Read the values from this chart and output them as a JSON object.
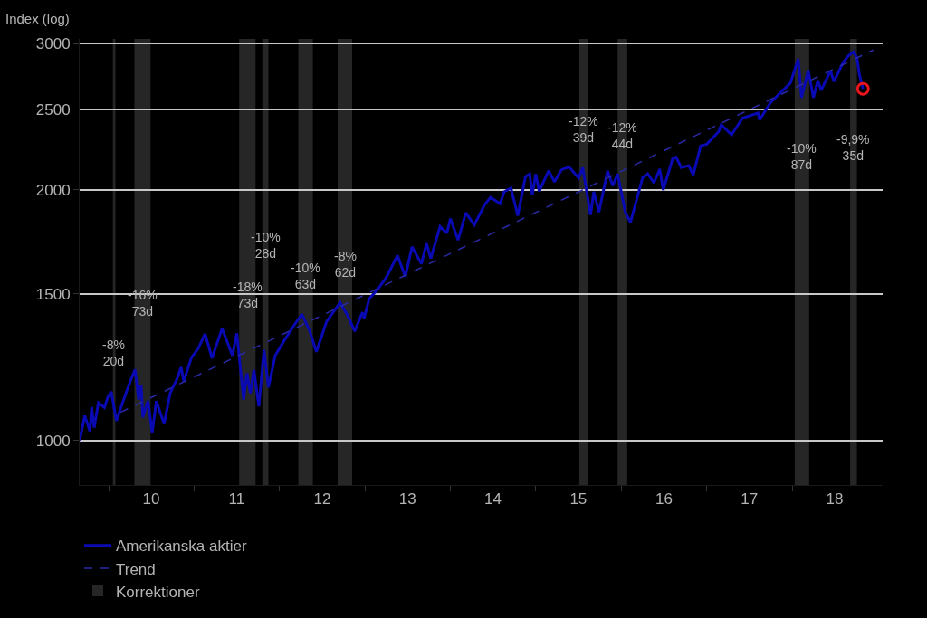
{
  "chart_data": {
    "type": "line",
    "ylabel": "Index (log)",
    "log": true,
    "grid": "y",
    "legend": "bottom",
    "xlim": [
      "2009-08-30",
      "2019-01-23"
    ],
    "ylim": [
      884,
      3038
    ],
    "yticks": [
      1000,
      1500,
      2000,
      2500,
      3000
    ],
    "xticks": [
      {
        "value": "2010-01-01",
        "label": null
      },
      {
        "value": "2010-07-02",
        "label": "10"
      },
      {
        "value": "2011-01-01",
        "label": null
      },
      {
        "value": "2011-07-02",
        "label": "11"
      },
      {
        "value": "2012-01-01",
        "label": null
      },
      {
        "value": "2012-07-02",
        "label": "12"
      },
      {
        "value": "2013-01-01",
        "label": null
      },
      {
        "value": "2013-07-02",
        "label": "13"
      },
      {
        "value": "2014-01-01",
        "label": null
      },
      {
        "value": "2014-07-02",
        "label": "14"
      },
      {
        "value": "2015-01-01",
        "label": null
      },
      {
        "value": "2015-07-02",
        "label": "15"
      },
      {
        "value": "2016-01-01",
        "label": null
      },
      {
        "value": "2016-07-02",
        "label": "16"
      },
      {
        "value": "2017-01-01",
        "label": null
      },
      {
        "value": "2017-07-02",
        "label": "17"
      },
      {
        "value": "2018-01-01",
        "label": null
      },
      {
        "value": "2018-07-02",
        "label": "18"
      }
    ],
    "series": [
      {
        "name": "Amerikanska aktier",
        "color": "#0a0ab4",
        "line_style": "solid",
        "marker": "none",
        "x": [
          "2009-08-30",
          "2009-09-21",
          "2009-10-13",
          "2009-10-20",
          "2009-10-31",
          "2009-11-18",
          "2009-12-14",
          "2009-12-28",
          "2010-01-12",
          "2010-02-03",
          "2010-03-04",
          "2010-04-02",
          "2010-04-24",
          "2010-05-09",
          "2010-05-20",
          "2010-05-27",
          "2010-06-18",
          "2010-07-06",
          "2010-07-24",
          "2010-08-26",
          "2010-09-21",
          "2010-10-20",
          "2010-11-07",
          "2010-11-18",
          "2010-12-21",
          "2011-01-19",
          "2011-02-17",
          "2011-03-19",
          "2011-05-01",
          "2011-06-14",
          "2011-07-03",
          "2011-08-01",
          "2011-08-15",
          "2011-08-30",
          "2011-09-14",
          "2011-10-05",
          "2011-10-27",
          "2011-11-15",
          "2011-12-14",
          "2012-01-19",
          "2012-02-25",
          "2012-04-06",
          "2012-05-09",
          "2012-06-07",
          "2012-07-21",
          "2012-09-17",
          "2012-10-20",
          "2012-11-18",
          "2012-12-21",
          "2012-12-28",
          "2013-01-19",
          "2013-02-25",
          "2013-04-02",
          "2013-05-20",
          "2013-06-22",
          "2013-07-21",
          "2013-08-30",
          "2013-09-21",
          "2013-10-09",
          "2013-11-18",
          "2013-12-17",
          "2014-01-01",
          "2014-02-03",
          "2014-03-08",
          "2014-04-13",
          "2014-05-27",
          "2014-06-22",
          "2014-08-01",
          "2014-08-19",
          "2014-09-17",
          "2014-10-16",
          "2014-11-18",
          "2014-12-06",
          "2014-12-17",
          "2015-01-01",
          "2015-01-16",
          "2015-02-25",
          "2015-03-22",
          "2015-04-21",
          "2015-05-23",
          "2015-07-03",
          "2015-07-21",
          "2015-08-23",
          "2015-09-06",
          "2015-09-28",
          "2015-11-04",
          "2015-11-26",
          "2015-12-17",
          "2016-01-19",
          "2016-02-10",
          "2016-04-02",
          "2016-04-24",
          "2016-05-20",
          "2016-06-14",
          "2016-06-29",
          "2016-08-08",
          "2016-08-23",
          "2016-09-14",
          "2016-10-16",
          "2016-11-04",
          "2016-12-06",
          "2017-01-01",
          "2017-02-21",
          "2017-03-04",
          "2017-04-17",
          "2017-06-03",
          "2017-08-08",
          "2017-08-15",
          "2017-10-02",
          "2017-11-26",
          "2017-12-25",
          "2018-01-27",
          "2018-02-10",
          "2018-03-11",
          "2018-04-02",
          "2018-04-21",
          "2018-05-05",
          "2018-06-14",
          "2018-06-29",
          "2018-08-08",
          "2018-08-30",
          "2018-09-21",
          "2018-10-05",
          "2018-10-16",
          "2018-10-31"
        ],
        "values": [
          1000,
          1071,
          1025,
          1097,
          1036,
          1110,
          1095,
          1127,
          1145,
          1056,
          1115,
          1175,
          1217,
          1120,
          1165,
          1066,
          1116,
          1022,
          1115,
          1047,
          1140,
          1185,
          1225,
          1178,
          1258,
          1290,
          1343,
          1256,
          1363,
          1265,
          1345,
          1120,
          1204,
          1140,
          1216,
          1099,
          1285,
          1158,
          1265,
          1315,
          1365,
          1419,
          1355,
          1278,
          1390,
          1465,
          1410,
          1353,
          1426,
          1402,
          1480,
          1520,
          1570,
          1669,
          1573,
          1709,
          1630,
          1725,
          1655,
          1808,
          1775,
          1848,
          1741,
          1878,
          1815,
          1920,
          1960,
          1925,
          1990,
          2011,
          1862,
          2075,
          2090,
          1972,
          2090,
          1993,
          2110,
          2045,
          2115,
          2131,
          2068,
          2128,
          1867,
          1990,
          1881,
          2109,
          2023,
          2090,
          1880,
          1829,
          2070,
          2091,
          2040,
          2119,
          2000,
          2180,
          2190,
          2128,
          2140,
          2085,
          2260,
          2270,
          2350,
          2395,
          2330,
          2440,
          2475,
          2428,
          2550,
          2640,
          2690,
          2873,
          2581,
          2786,
          2581,
          2708,
          2635,
          2780,
          2700,
          2850,
          2900,
          2931,
          2880,
          2750,
          2646
        ]
      },
      {
        "name": "Trend",
        "color": "#2a2aa8",
        "line_style": "dashed",
        "marker": "none",
        "x": [
          "2010-02-21",
          "2018-12-14"
        ],
        "values": [
          1081,
          2946
        ]
      },
      {
        "type": "scatter",
        "color": "#e8141e",
        "marker": "circle",
        "x": [
          "2018-10-31"
        ],
        "values": [
          2646
        ]
      }
    ],
    "bands": [
      {
        "axis": "x",
        "from": "2010-01-19",
        "to": "2010-01-30",
        "label": "Korrektioner",
        "color": "#262626"
      },
      {
        "axis": "x",
        "from": "2010-04-21",
        "to": "2010-06-29",
        "color": "#262626"
      },
      {
        "axis": "x",
        "from": "2011-07-13",
        "to": "2011-09-21",
        "color": "#262626"
      },
      {
        "axis": "x",
        "from": "2011-10-20",
        "to": "2011-11-15",
        "color": "#262626"
      },
      {
        "axis": "x",
        "from": "2012-03-22",
        "to": "2012-05-23",
        "color": "#262626"
      },
      {
        "axis": "x",
        "from": "2012-09-06",
        "to": "2012-11-07",
        "color": "#262626"
      },
      {
        "axis": "x",
        "from": "2015-07-06",
        "to": "2015-08-12",
        "color": "#262626"
      },
      {
        "axis": "x",
        "from": "2015-12-17",
        "to": "2016-01-27",
        "color": "#262626"
      },
      {
        "axis": "x",
        "from": "2018-01-12",
        "to": "2018-03-15",
        "color": "#262626"
      },
      {
        "axis": "x",
        "from": "2018-09-06",
        "to": "2018-10-05",
        "color": "#262626"
      }
    ],
    "annotations": [
      "-8%\n20d",
      "-16%\n73d",
      "-18%\n73d",
      "-10%\n28d",
      "-10%\n63d",
      "-8%\n62d",
      "-12%\n39d",
      "-12%\n44d",
      "-10%\n87d",
      "-9,9%\n35d"
    ]
  }
}
